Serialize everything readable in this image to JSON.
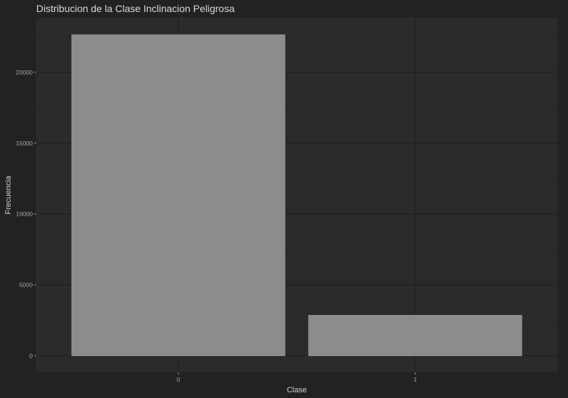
{
  "colors": {
    "page_background": "#222222",
    "panel_background": "#2b2b2b",
    "grid_major": "#1f1f1f",
    "grid_minor": "#262626",
    "bar_fill": "#8c8c8c",
    "bar_outline": "#9a9a9a",
    "text": "#d9d9d9",
    "tick_text": "#a9a9a9"
  },
  "chart_data": {
    "type": "bar",
    "title": "Distribucion de la Clase Inclinacion Peligrosa",
    "xlabel": "Clase",
    "ylabel": "Frecuencia",
    "categories": [
      "0",
      "1"
    ],
    "values": [
      22650,
      2850
    ],
    "ylim": [
      -1180,
      23850
    ],
    "yticks": [
      0,
      5000,
      10000,
      15000,
      20000
    ],
    "ytick_labels": [
      "0",
      "5000",
      "10000",
      "15000",
      "20000"
    ],
    "grid": true,
    "legend": "none"
  }
}
